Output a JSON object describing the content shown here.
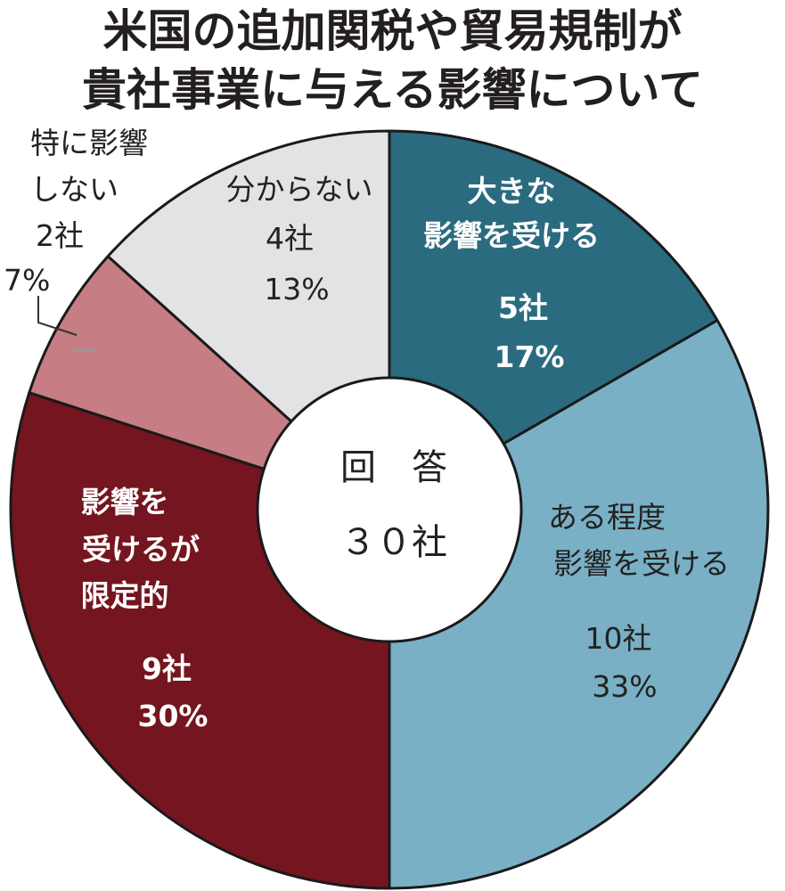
{
  "chart_data": {
    "type": "pie",
    "title_lines": [
      "米国の追加関税や貿易規制が",
      "貴社事業に与える影響について"
    ],
    "center_label": [
      "回　答",
      "３０社"
    ],
    "total": 30,
    "slices": [
      {
        "label_lines": [
          "大きな",
          "影響を受ける"
        ],
        "count_label": "5社",
        "percent_label": "17%",
        "value": 5,
        "color": "#2b6b7f"
      },
      {
        "label_lines": [
          "ある程度",
          "影響を受ける"
        ],
        "count_label": "10社",
        "percent_label": "33%",
        "value": 10,
        "color": "#79b0c5"
      },
      {
        "label_lines": [
          "影響を",
          "受けるが",
          "限定的"
        ],
        "count_label": "9社",
        "percent_label": "30%",
        "value": 9,
        "color": "#74151f"
      },
      {
        "label_lines": [
          "特に影響",
          "しない"
        ],
        "count_label": "2社",
        "percent_label": "7%",
        "value": 2,
        "color": "#c67d84"
      },
      {
        "label_lines": [
          "分からない"
        ],
        "count_label": "4社",
        "percent_label": "13%",
        "value": 4,
        "color": "#e3e3e6"
      }
    ]
  }
}
